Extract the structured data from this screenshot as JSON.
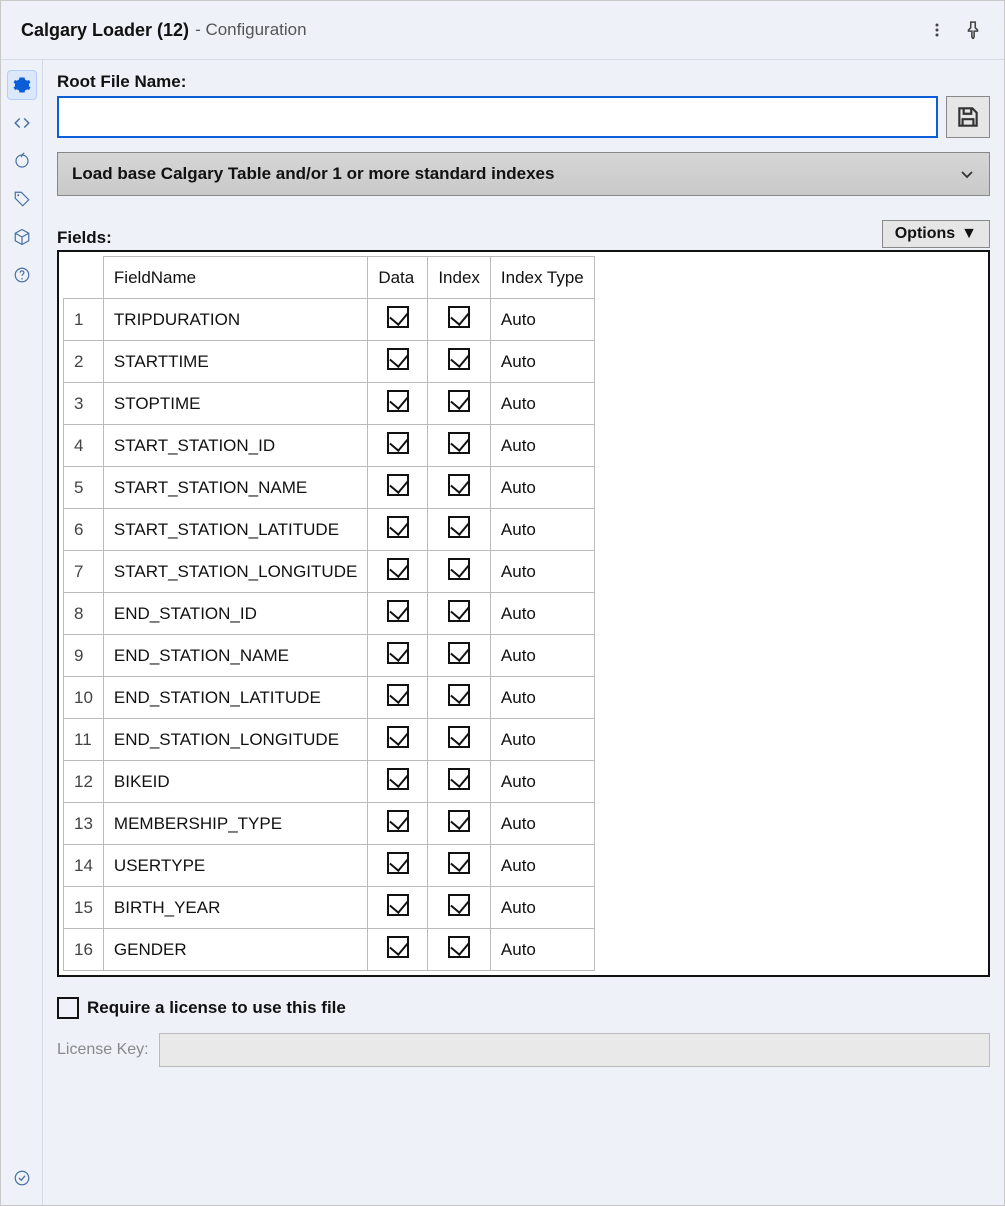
{
  "titlebar": {
    "main": "Calgary Loader (12)",
    "sub": "- Configuration"
  },
  "rootFile": {
    "label": "Root File Name:",
    "value": ""
  },
  "modeDropdown": {
    "label": "Load base Calgary Table and/or 1 or more standard indexes"
  },
  "fieldsLabel": "Fields:",
  "optionsLabel": "Options",
  "columns": {
    "fieldName": "FieldName",
    "data": "Data",
    "index": "Index",
    "indexType": "Index Type"
  },
  "rows": [
    {
      "n": "1",
      "name": "TRIPDURATION",
      "data": true,
      "index": true,
      "type": "Auto"
    },
    {
      "n": "2",
      "name": "STARTTIME",
      "data": true,
      "index": true,
      "type": "Auto"
    },
    {
      "n": "3",
      "name": "STOPTIME",
      "data": true,
      "index": true,
      "type": "Auto"
    },
    {
      "n": "4",
      "name": "START_STATION_ID",
      "data": true,
      "index": true,
      "type": "Auto"
    },
    {
      "n": "5",
      "name": "START_STATION_NAME",
      "data": true,
      "index": true,
      "type": "Auto"
    },
    {
      "n": "6",
      "name": "START_STATION_LATITUDE",
      "data": true,
      "index": true,
      "type": "Auto"
    },
    {
      "n": "7",
      "name": "START_STATION_LONGITUDE",
      "data": true,
      "index": true,
      "type": "Auto"
    },
    {
      "n": "8",
      "name": "END_STATION_ID",
      "data": true,
      "index": true,
      "type": "Auto"
    },
    {
      "n": "9",
      "name": "END_STATION_NAME",
      "data": true,
      "index": true,
      "type": "Auto"
    },
    {
      "n": "10",
      "name": "END_STATION_LATITUDE",
      "data": true,
      "index": true,
      "type": "Auto"
    },
    {
      "n": "11",
      "name": "END_STATION_LONGITUDE",
      "data": true,
      "index": true,
      "type": "Auto"
    },
    {
      "n": "12",
      "name": "BIKEID",
      "data": true,
      "index": true,
      "type": "Auto"
    },
    {
      "n": "13",
      "name": "MEMBERSHIP_TYPE",
      "data": true,
      "index": true,
      "type": "Auto"
    },
    {
      "n": "14",
      "name": "USERTYPE",
      "data": true,
      "index": true,
      "type": "Auto"
    },
    {
      "n": "15",
      "name": "BIRTH_YEAR",
      "data": true,
      "index": true,
      "type": "Auto"
    },
    {
      "n": "16",
      "name": "GENDER",
      "data": true,
      "index": true,
      "type": "Auto"
    }
  ],
  "license": {
    "requireLabel": "Require a license to use this file",
    "required": false,
    "keyLabel": "License Key:",
    "keyValue": ""
  },
  "colors": {
    "panel_bg": "#eef2f8",
    "accent": "#0b5ed7",
    "dropdown_bg": "#cfcfcf",
    "border": "#bbbbbb"
  }
}
